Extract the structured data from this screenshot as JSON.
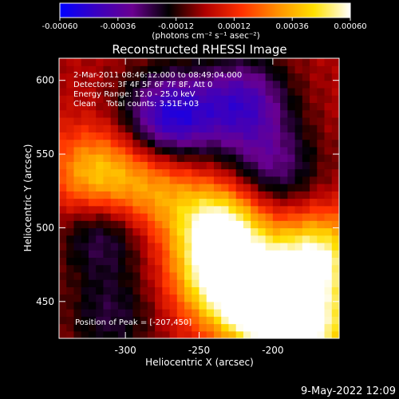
{
  "colorbar": {
    "ticks": [
      "-0.00060",
      "-0.00036",
      "-0.00012",
      "0.00012",
      "0.00036",
      "0.00060"
    ],
    "tick_values": [
      -0.0006,
      -0.00036,
      -0.00012,
      0.00012,
      0.00036,
      0.0006
    ],
    "range": [
      -0.0006,
      0.0006
    ],
    "unit_label": "(photons cm⁻² s⁻¹ asec⁻²)",
    "colormap": [
      "#0000ff",
      "#3a00c0",
      "#6a0090",
      "#000000",
      "#b00000",
      "#ff3000",
      "#ff9000",
      "#ffe000",
      "#ffffff"
    ]
  },
  "chart_data": {
    "type": "heatmap",
    "title": "Reconstructed RHESSI Image",
    "xlabel": "Heliocentric X (arcsec)",
    "ylabel": "Heliocentric Y (arcsec)",
    "xlim": [
      -345,
      -155
    ],
    "ylim": [
      425,
      615
    ],
    "xticks": [
      -300,
      -250,
      -200
    ],
    "yticks": [
      450,
      500,
      550,
      600
    ],
    "vrange": [
      -0.0006,
      0.0006
    ],
    "annotations": [
      "2-Mar-2011 08:46:12.000 to 08:49:04.000",
      "Detectors: 3F 4F 5F 6F 7F 8F, Att 0",
      "Energy Range: 12.0 - 25.0 keV",
      "Clean    Total counts: 3.51E+03"
    ],
    "peak_label": "Position of Peak = [-207,450]",
    "peak": [
      -207,
      450
    ],
    "sources": [
      {
        "x": -270,
        "y": 575,
        "amp": -0.0005
      },
      {
        "x": -220,
        "y": 585,
        "amp": -0.0004
      },
      {
        "x": -315,
        "y": 500,
        "amp": -0.0003
      },
      {
        "x": -200,
        "y": 540,
        "amp": -0.00028
      },
      {
        "x": -310,
        "y": 440,
        "amp": -0.0002
      },
      {
        "x": -207,
        "y": 450,
        "amp": 0.00075
      },
      {
        "x": -235,
        "y": 500,
        "amp": 0.0006
      },
      {
        "x": -170,
        "y": 480,
        "amp": 0.00055
      },
      {
        "x": -320,
        "y": 535,
        "amp": 0.00042
      },
      {
        "x": -280,
        "y": 525,
        "amp": 0.0003
      },
      {
        "x": -175,
        "y": 430,
        "amp": 0.0005
      },
      {
        "x": -240,
        "y": 465,
        "amp": 0.0004
      }
    ]
  },
  "footer": {
    "timestamp": "9-May-2022 12:09"
  }
}
